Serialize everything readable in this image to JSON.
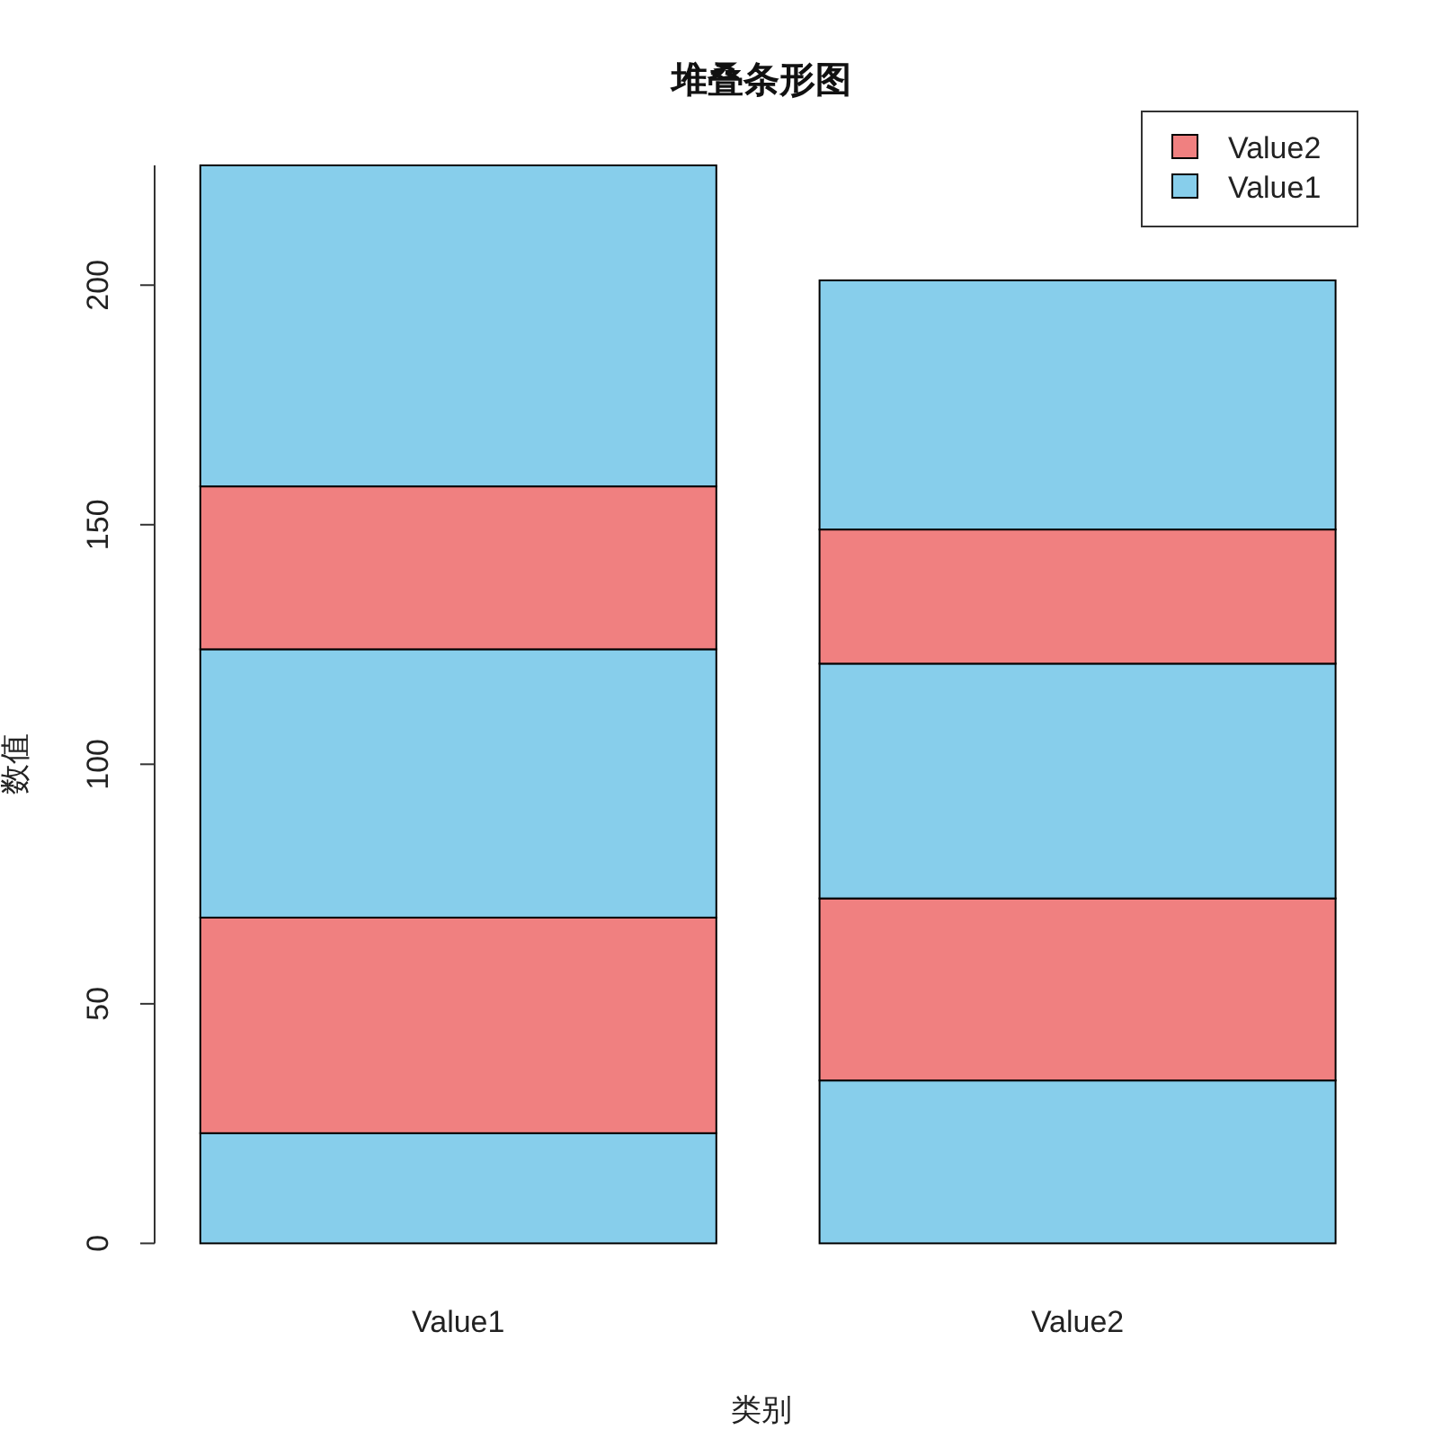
{
  "chart_data": {
    "type": "bar",
    "stacked": true,
    "title": "堆叠条形图",
    "xlabel": "类别",
    "ylabel": "数值",
    "categories": [
      "Value1",
      "Value2"
    ],
    "series": [
      {
        "name": "Value1",
        "color": "#87ceeb",
        "values": [
          23,
          34
        ]
      },
      {
        "name": "Value2",
        "color": "#f08080",
        "values": [
          45,
          38
        ]
      },
      {
        "color": "#87ceeb",
        "values": [
          56,
          49
        ]
      },
      {
        "color": "#f08080",
        "values": [
          34,
          28
        ]
      },
      {
        "color": "#87ceeb",
        "values": [
          67,
          52
        ]
      }
    ],
    "ylim": [
      0,
      225
    ],
    "yticks": [
      0,
      50,
      100,
      150,
      200
    ],
    "legend": "top right"
  }
}
